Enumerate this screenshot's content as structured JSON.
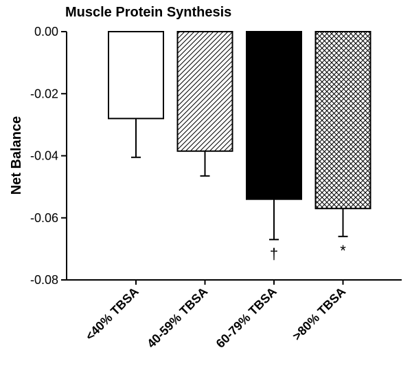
{
  "chart_data": {
    "type": "bar",
    "title": "Muscle Protein Synthesis",
    "xlabel": "",
    "ylabel": "Net Balance",
    "ylim": [
      -0.08,
      0.0
    ],
    "y_ticks": [
      0.0,
      -0.02,
      -0.04,
      -0.06,
      -0.08
    ],
    "y_tick_labels": [
      "0.00",
      "-0.02",
      "-0.04",
      "-0.06",
      "-0.08"
    ],
    "categories": [
      "<40% TBSA",
      "40-59% TBSA",
      "60-79% TBSA",
      ">80% TBSA"
    ],
    "values": [
      -0.028,
      -0.0385,
      -0.054,
      -0.057
    ],
    "errors": [
      0.0125,
      0.008,
      0.013,
      0.009
    ],
    "fills": [
      "white",
      "diagonal-hatch",
      "solid-black",
      "crosshatch"
    ],
    "annotations": [
      "",
      "",
      "†",
      "*"
    ],
    "grid": false,
    "legend": "none"
  }
}
